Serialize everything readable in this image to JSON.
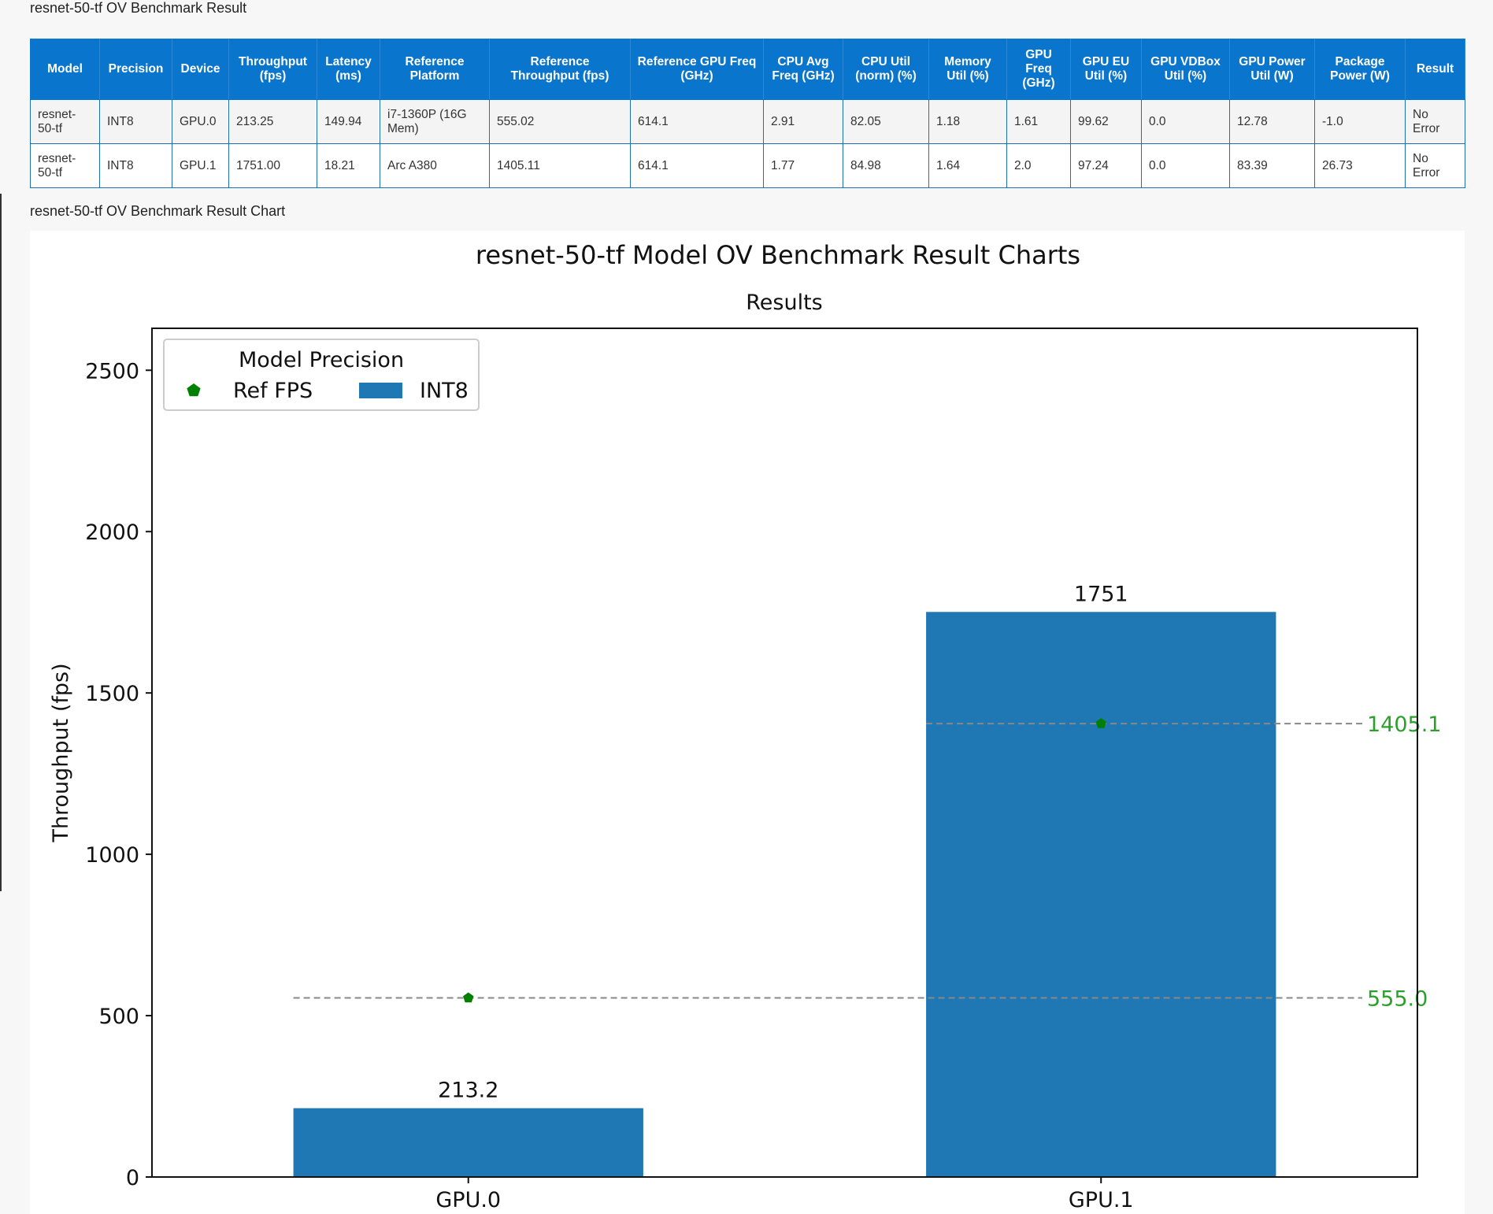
{
  "results_title": "resnet-50-tf OV Benchmark Result",
  "chart_section_title": "resnet-50-tf OV Benchmark Result Chart",
  "table": {
    "headers": [
      "Model",
      "Precision",
      "Device",
      "Throughput (fps)",
      "Latency (ms)",
      "Reference Platform",
      "Reference Throughput (fps)",
      "Reference GPU Freq (GHz)",
      "CPU Avg Freq (GHz)",
      "CPU Util (norm) (%)",
      "Memory Util (%)",
      "GPU Freq (GHz)",
      "GPU EU Util (%)",
      "GPU VDBox Util (%)",
      "GPU Power Util (W)",
      "Package Power (W)",
      "Result"
    ],
    "rows": [
      [
        "resnet-50-tf",
        "INT8",
        "GPU.0",
        "213.25",
        "149.94",
        "i7-1360P (16G Mem)",
        "555.02",
        "614.1",
        "2.91",
        "82.05",
        "1.18",
        "1.61",
        "99.62",
        "0.0",
        "12.78",
        "-1.0",
        "No Error"
      ],
      [
        "resnet-50-tf",
        "INT8",
        "GPU.1",
        "1751.00",
        "18.21",
        "Arc A380",
        "1405.11",
        "614.1",
        "1.77",
        "84.98",
        "1.64",
        "2.0",
        "97.24",
        "0.0",
        "83.39",
        "26.73",
        "No Error"
      ]
    ]
  },
  "chart_data": {
    "type": "bar",
    "title": "resnet-50-tf Model OV Benchmark Result Charts",
    "subtitle": "Results",
    "xlabel": "",
    "ylabel": "Throughput (fps)",
    "categories": [
      "GPU.0",
      "GPU.1"
    ],
    "series": [
      {
        "name": "INT8",
        "values": [
          213.25,
          1751.0
        ],
        "color": "#1f77b4"
      }
    ],
    "bar_labels": [
      "213.2",
      "1751"
    ],
    "reference": {
      "name": "Ref FPS",
      "values": [
        555.02,
        1405.11
      ],
      "labels": [
        "555.0",
        "1405.1"
      ],
      "color": "#008000"
    },
    "legend": {
      "title": "Model Precision",
      "location": "upper-left"
    },
    "ylim": [
      0,
      2630
    ],
    "yticks": [
      0,
      500,
      1000,
      1500,
      2000,
      2500
    ],
    "grid": false
  }
}
